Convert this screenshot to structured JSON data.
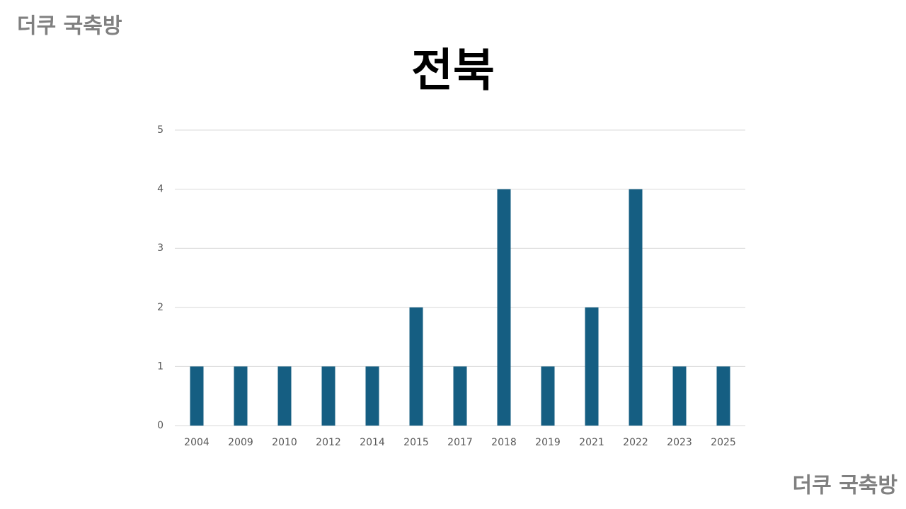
{
  "chart_data": {
    "type": "bar",
    "title": "전북",
    "annotations": [
      "더쿠 국축방",
      "더쿠 국축방"
    ],
    "categories": [
      "2004",
      "2009",
      "2010",
      "2012",
      "2014",
      "2015",
      "2017",
      "2018",
      "2019",
      "2021",
      "2022",
      "2023",
      "2025"
    ],
    "values": [
      1,
      1,
      1,
      1,
      1,
      2,
      1,
      4,
      1,
      2,
      4,
      1,
      1
    ],
    "color": "#155e82",
    "ylim": [
      0,
      5
    ],
    "yticks": [
      0,
      1,
      2,
      3,
      4,
      5
    ],
    "grid": true
  }
}
